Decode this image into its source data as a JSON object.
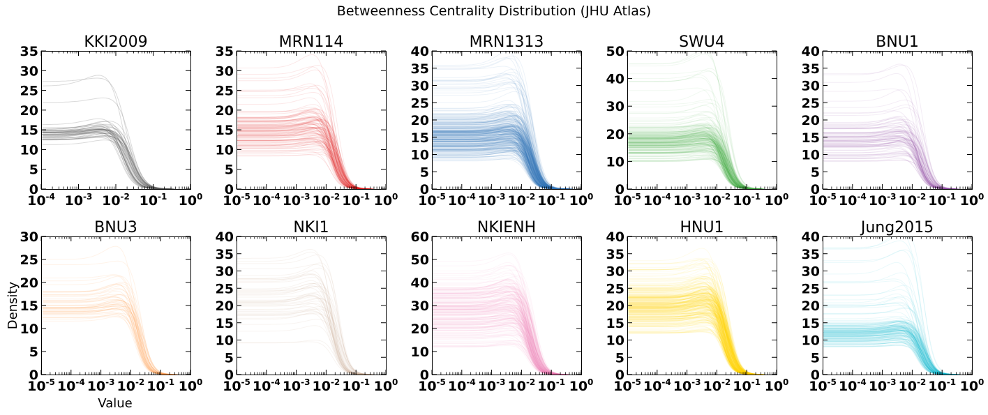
{
  "figure": {
    "title": "Betweenness Centrality Distribution (JHU Atlas)",
    "xlabel": "Value",
    "ylabel": "Density"
  },
  "chart_data": [
    {
      "type": "line",
      "title": "KKI2009",
      "color": "#555555",
      "xscale": "log",
      "xlim": [
        0.0001,
        1
      ],
      "ylim": [
        0,
        35
      ],
      "yticks": [
        0,
        5,
        10,
        15,
        20,
        25,
        30,
        35
      ],
      "xticks": [
        {
          "base": "10",
          "exp": "-4"
        },
        {
          "base": "10",
          "exp": "-3"
        },
        {
          "base": "10",
          "exp": "-2"
        },
        {
          "base": "10",
          "exp": "-1"
        },
        {
          "base": "10",
          "exp": "0"
        }
      ],
      "line_count": 42,
      "typical_plateau": 13.5,
      "plateau_range": [
        11,
        31
      ],
      "dropoff_x": 0.02,
      "tail_x": 0.3,
      "opacity": 0.22
    },
    {
      "type": "line",
      "title": "MRN114",
      "color": "#e41a1c",
      "xscale": "log",
      "xlim": [
        1e-05,
        1
      ],
      "ylim": [
        0,
        35
      ],
      "yticks": [
        0,
        5,
        10,
        15,
        20,
        25,
        30,
        35
      ],
      "xticks": [
        {
          "base": "10",
          "exp": "-5"
        },
        {
          "base": "10",
          "exp": "-4"
        },
        {
          "base": "10",
          "exp": "-3"
        },
        {
          "base": "10",
          "exp": "-2"
        },
        {
          "base": "10",
          "exp": "-1"
        },
        {
          "base": "10",
          "exp": "0"
        }
      ],
      "line_count": 110,
      "typical_plateau": 15,
      "plateau_range": [
        8,
        31
      ],
      "dropoff_x": 0.02,
      "tail_x": 0.3,
      "opacity": 0.1
    },
    {
      "type": "line",
      "title": "MRN1313",
      "color": "#377eb8",
      "xscale": "log",
      "xlim": [
        1e-05,
        1
      ],
      "ylim": [
        0,
        40
      ],
      "yticks": [
        0,
        5,
        10,
        15,
        20,
        25,
        30,
        35,
        40
      ],
      "xticks": [
        {
          "base": "10",
          "exp": "-5"
        },
        {
          "base": "10",
          "exp": "-4"
        },
        {
          "base": "10",
          "exp": "-3"
        },
        {
          "base": "10",
          "exp": "-2"
        },
        {
          "base": "10",
          "exp": "-1"
        },
        {
          "base": "10",
          "exp": "0"
        }
      ],
      "line_count": 320,
      "typical_plateau": 15,
      "plateau_range": [
        8,
        37
      ],
      "dropoff_x": 0.02,
      "tail_x": 0.4,
      "opacity": 0.09
    },
    {
      "type": "line",
      "title": "SWU4",
      "color": "#4daf4a",
      "xscale": "log",
      "xlim": [
        1e-05,
        1
      ],
      "ylim": [
        0,
        50
      ],
      "yticks": [
        0,
        10,
        20,
        30,
        40,
        50
      ],
      "xticks": [
        {
          "base": "10",
          "exp": "-5"
        },
        {
          "base": "10",
          "exp": "-4"
        },
        {
          "base": "10",
          "exp": "-3"
        },
        {
          "base": "10",
          "exp": "-2"
        },
        {
          "base": "10",
          "exp": "-1"
        },
        {
          "base": "10",
          "exp": "0"
        }
      ],
      "line_count": 220,
      "typical_plateau": 17,
      "plateau_range": [
        10,
        46
      ],
      "dropoff_x": 0.02,
      "tail_x": 0.3,
      "opacity": 0.08
    },
    {
      "type": "line",
      "title": "BNU1",
      "color": "#984ea3",
      "xscale": "log",
      "xlim": [
        1e-05,
        1
      ],
      "ylim": [
        0,
        40
      ],
      "yticks": [
        0,
        5,
        10,
        15,
        20,
        25,
        30,
        35,
        40
      ],
      "xticks": [
        {
          "base": "10",
          "exp": "-5"
        },
        {
          "base": "10",
          "exp": "-4"
        },
        {
          "base": "10",
          "exp": "-3"
        },
        {
          "base": "10",
          "exp": "-2"
        },
        {
          "base": "10",
          "exp": "-1"
        },
        {
          "base": "10",
          "exp": "0"
        }
      ],
      "line_count": 90,
      "typical_plateau": 15,
      "plateau_range": [
        8,
        37
      ],
      "dropoff_x": 0.02,
      "tail_x": 0.3,
      "opacity": 0.1
    },
    {
      "type": "line",
      "title": "BNU3",
      "color": "#ff9f4a",
      "xscale": "log",
      "xlim": [
        1e-05,
        1
      ],
      "ylim": [
        0,
        30
      ],
      "yticks": [
        0,
        5,
        10,
        15,
        20,
        25,
        30
      ],
      "xticks": [
        {
          "base": "10",
          "exp": "-5"
        },
        {
          "base": "10",
          "exp": "-4"
        },
        {
          "base": "10",
          "exp": "-3"
        },
        {
          "base": "10",
          "exp": "-2"
        },
        {
          "base": "10",
          "exp": "-1"
        },
        {
          "base": "10",
          "exp": "0"
        }
      ],
      "line_count": 48,
      "typical_plateau": 15,
      "plateau_range": [
        11,
        26
      ],
      "dropoff_x": 0.02,
      "tail_x": 0.3,
      "opacity": 0.12
    },
    {
      "type": "line",
      "title": "NKI1",
      "color": "#c8a48a",
      "xscale": "log",
      "xlim": [
        1e-05,
        1
      ],
      "ylim": [
        0,
        40
      ],
      "yticks": [
        0,
        5,
        10,
        15,
        20,
        25,
        30,
        35,
        40
      ],
      "xticks": [
        {
          "base": "10",
          "exp": "-5"
        },
        {
          "base": "10",
          "exp": "-4"
        },
        {
          "base": "10",
          "exp": "-3"
        },
        {
          "base": "10",
          "exp": "-2"
        },
        {
          "base": "10",
          "exp": "-1"
        },
        {
          "base": "10",
          "exp": "0"
        }
      ],
      "line_count": 44,
      "typical_plateau": 22,
      "plateau_range": [
        9,
        38
      ],
      "dropoff_x": 0.02,
      "tail_x": 0.3,
      "opacity": 0.12
    },
    {
      "type": "line",
      "title": "NKIENH",
      "color": "#f781bf",
      "xscale": "log",
      "xlim": [
        1e-05,
        1
      ],
      "ylim": [
        0,
        60
      ],
      "yticks": [
        0,
        10,
        20,
        30,
        40,
        50,
        60
      ],
      "xticks": [
        {
          "base": "10",
          "exp": "-5"
        },
        {
          "base": "10",
          "exp": "-4"
        },
        {
          "base": "10",
          "exp": "-3"
        },
        {
          "base": "10",
          "exp": "-2"
        },
        {
          "base": "10",
          "exp": "-1"
        },
        {
          "base": "10",
          "exp": "0"
        }
      ],
      "line_count": 200,
      "typical_plateau": 28,
      "plateau_range": [
        12,
        50
      ],
      "dropoff_x": 0.02,
      "tail_x": 0.3,
      "opacity": 0.07
    },
    {
      "type": "line",
      "title": "HNU1",
      "color": "#ffd700",
      "xscale": "log",
      "xlim": [
        1e-05,
        1
      ],
      "ylim": [
        0,
        40
      ],
      "yticks": [
        0,
        5,
        10,
        15,
        20,
        25,
        30,
        35,
        40
      ],
      "xticks": [
        {
          "base": "10",
          "exp": "-5"
        },
        {
          "base": "10",
          "exp": "-4"
        },
        {
          "base": "10",
          "exp": "-3"
        },
        {
          "base": "10",
          "exp": "-2"
        },
        {
          "base": "10",
          "exp": "-1"
        },
        {
          "base": "10",
          "exp": "0"
        }
      ],
      "line_count": 300,
      "typical_plateau": 20,
      "plateau_range": [
        12,
        33
      ],
      "dropoff_x": 0.02,
      "tail_x": 0.3,
      "opacity": 0.08
    },
    {
      "type": "line",
      "title": "Jung2015",
      "color": "#17becf",
      "xscale": "log",
      "xlim": [
        1e-05,
        1
      ],
      "ylim": [
        0,
        40
      ],
      "yticks": [
        0,
        5,
        10,
        15,
        20,
        25,
        30,
        35,
        40
      ],
      "xticks": [
        {
          "base": "10",
          "exp": "-5"
        },
        {
          "base": "10",
          "exp": "-4"
        },
        {
          "base": "10",
          "exp": "-3"
        },
        {
          "base": "10",
          "exp": "-2"
        },
        {
          "base": "10",
          "exp": "-1"
        },
        {
          "base": "10",
          "exp": "0"
        }
      ],
      "line_count": 150,
      "typical_plateau": 12,
      "plateau_range": [
        8,
        37
      ],
      "dropoff_x": 0.02,
      "tail_x": 0.3,
      "opacity": 0.09
    }
  ]
}
